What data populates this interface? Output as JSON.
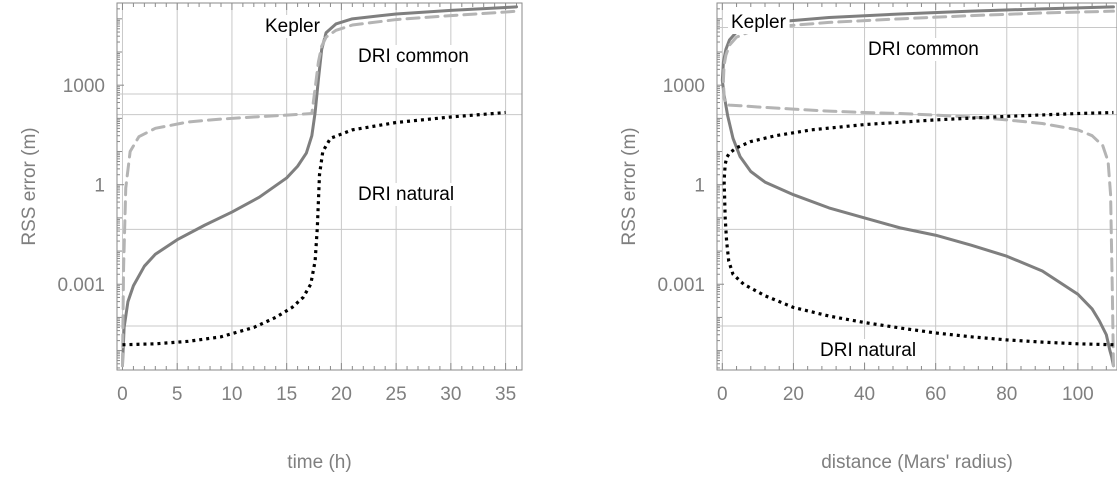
{
  "chart_data": [
    {
      "type": "line",
      "xlabel": "time (h)",
      "ylabel": "RSS error (m)",
      "xlim": [
        -0.5,
        36.5
      ],
      "ylim": [
        2.6e-06,
        300000
      ],
      "yscale": "log",
      "xticks": [
        0,
        5,
        10,
        15,
        20,
        25,
        30,
        35
      ],
      "xtick_labels": [
        "0",
        "5",
        "10",
        "15",
        "20",
        "25",
        "30",
        "35"
      ],
      "yticks": [
        1000,
        1,
        0.001
      ],
      "ytick_labels": [
        "1000",
        "1",
        "0.001"
      ],
      "grid": true,
      "series": [
        {
          "name": "Kepler",
          "style": "solid",
          "color": "#7f7f7f",
          "x": [
            0,
            0.15,
            0.5,
            1,
            2,
            3,
            5,
            7.5,
            10,
            12.5,
            15,
            16,
            16.8,
            17.3,
            17.6,
            17.9,
            18.2,
            18.6,
            19.5,
            21,
            25,
            30,
            35,
            36
          ],
          "y": [
            3.5e-06,
            5e-05,
            0.0003,
            0.0009,
            0.0035,
            0.008,
            0.022,
            0.06,
            0.15,
            0.42,
            1.6,
            3.6,
            9,
            30,
            150,
            1500,
            12000,
            38000,
            70000,
            100000,
            140000,
            180000,
            220000,
            230000
          ]
        },
        {
          "name": "DRI common",
          "style": "dashed",
          "color": "#b4b4b4",
          "x": [
            0,
            0.1,
            0.3,
            0.7,
            1.5,
            3,
            6,
            9,
            12,
            15,
            17.3,
            17.6,
            17.9,
            18.2,
            18.6,
            19.5,
            21,
            25,
            30,
            35,
            36
          ],
          "y": [
            3.5e-06,
            0.003,
            0.8,
            10,
            28,
            50,
            78,
            95,
            110,
            125,
            140,
            800,
            5000,
            15000,
            28000,
            45000,
            65000,
            95000,
            125000,
            160000,
            170000
          ]
        },
        {
          "name": "DRI natural",
          "style": "dotted",
          "color": "#000000",
          "x": [
            0,
            3,
            6,
            9,
            12,
            14,
            15.5,
            16.5,
            17.2,
            17.6,
            17.8,
            18.0,
            18.3,
            19,
            21,
            25,
            30,
            35
          ],
          "y": [
            1.5e-05,
            1.6e-05,
            1.9e-05,
            2.6e-05,
            5e-05,
            0.0001,
            0.0002,
            0.0004,
            0.001,
            0.005,
            0.05,
            2,
            10,
            25,
            45,
            75,
            110,
            150
          ]
        }
      ],
      "annotations": [
        "Kepler",
        "DRI common",
        "DRI natural"
      ]
    },
    {
      "type": "line",
      "xlabel": "distance (Mars' radius)",
      "ylabel": "RSS error (m)",
      "xlim": [
        -1.5,
        111
      ],
      "ylim": [
        2.6e-06,
        300000
      ],
      "yscale": "log",
      "xticks": [
        0,
        20,
        40,
        60,
        80,
        100
      ],
      "xtick_labels": [
        "0",
        "20",
        "40",
        "60",
        "80",
        "100"
      ],
      "yticks": [
        1000,
        1,
        0.001
      ],
      "ytick_labels": [
        "1000",
        "1",
        "0.001"
      ],
      "grid": true,
      "series": [
        {
          "name": "Kepler",
          "style": "solid",
          "color": "#7f7f7f",
          "x": [
            110,
            109.5,
            109,
            108,
            106,
            104,
            100,
            90,
            80,
            70,
            60,
            50,
            40,
            30,
            20,
            12,
            8,
            5,
            3,
            1.5,
            0.5,
            0,
            0.3,
            1,
            2,
            4,
            8,
            15,
            30,
            50,
            70,
            90,
            110
          ],
          "y": [
            3.5e-06,
            6.5e-06,
            1e-05,
            3e-05,
            8e-05,
            0.00018,
            0.0005,
            0.0025,
            0.007,
            0.015,
            0.03,
            0.05,
            0.1,
            0.2,
            0.5,
            1.2,
            2.5,
            7,
            25,
            120,
            500,
            1400,
            5000,
            12000,
            23000,
            40000,
            60000,
            80000,
            110000,
            140000,
            170000,
            200000,
            230000
          ]
        },
        {
          "name": "DRI common",
          "style": "dashed",
          "color": "#b4b4b4",
          "x": [
            110,
            109.7,
            109.2,
            108.5,
            107,
            104,
            100,
            90,
            80,
            70,
            60,
            50,
            40,
            30,
            20,
            10,
            5,
            2,
            1,
            0.5,
            0.3,
            0.5,
            1,
            2,
            4,
            8,
            15,
            30,
            50,
            70,
            90,
            110
          ],
          "y": [
            3.5e-06,
            0.0005,
            0.5,
            5,
            15,
            30,
            45,
            70,
            90,
            110,
            125,
            140,
            150,
            165,
            190,
            220,
            240,
            250,
            270,
            400,
            1400,
            4000,
            8000,
            16000,
            28000,
            42000,
            58000,
            78000,
            100000,
            125000,
            150000,
            170000
          ]
        },
        {
          "name": "DRI natural",
          "style": "dotted",
          "color": "#000000",
          "x": [
            110,
            100,
            90,
            80,
            70,
            60,
            50,
            40,
            30,
            20,
            12,
            6,
            3,
            1.8,
            1.2,
            0.8,
            0.6,
            0.5,
            0.6,
            0.8,
            1.2,
            2,
            4,
            8,
            15,
            25,
            40,
            60,
            80,
            100,
            110
          ],
          "y": [
            1.5e-05,
            1.6e-05,
            1.8e-05,
            2.1e-05,
            2.6e-05,
            3.4e-05,
            4.8e-05,
            7e-05,
            0.00011,
            0.0002,
            0.00045,
            0.001,
            0.002,
            0.005,
            0.02,
            0.1,
            0.6,
            1,
            2,
            4,
            6.5,
            9,
            13,
            20,
            30,
            45,
            65,
            90,
            115,
            140,
            150
          ]
        }
      ],
      "annotations": [
        "Kepler",
        "DRI common",
        "DRI natural"
      ]
    }
  ]
}
